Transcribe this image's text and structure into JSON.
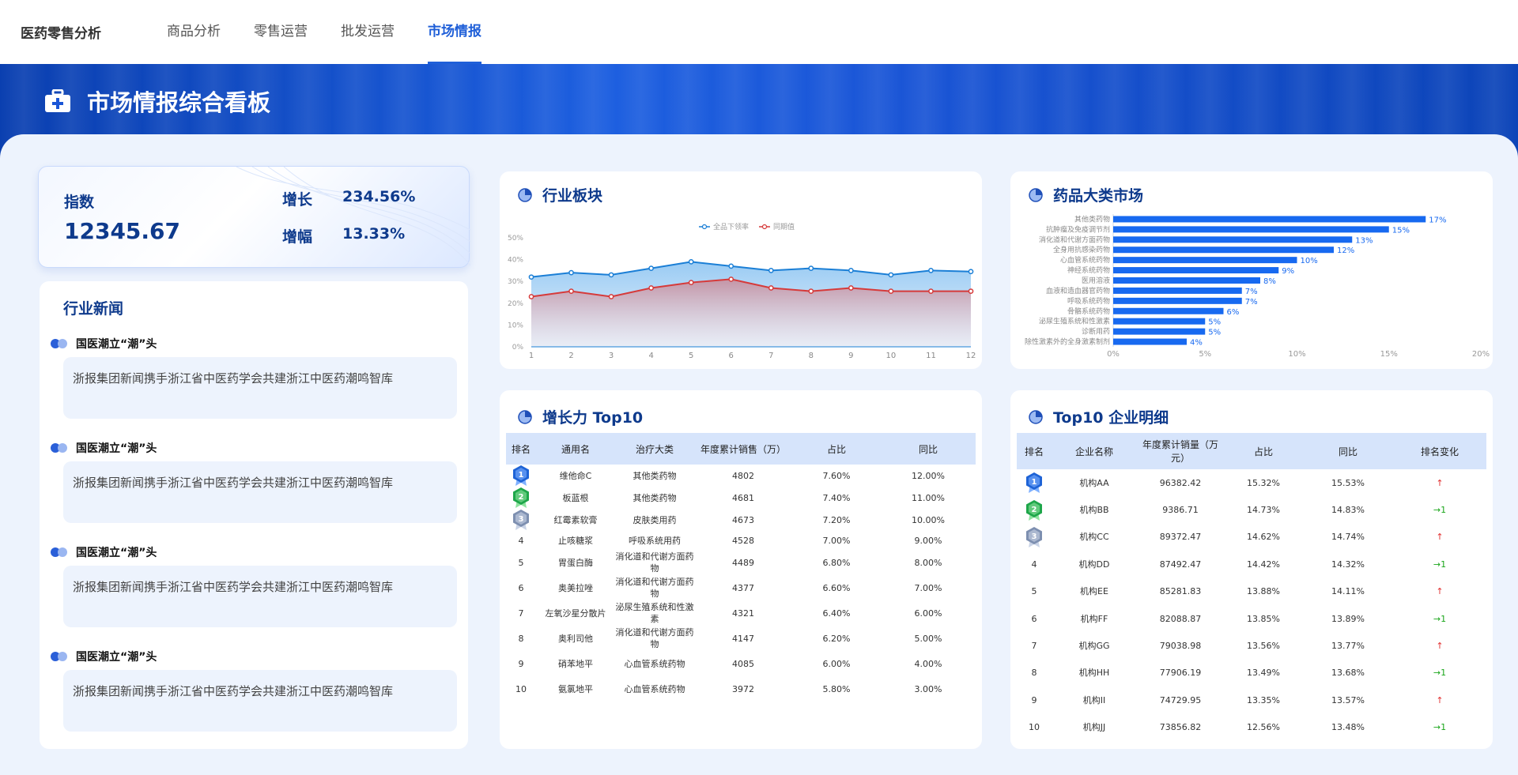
{
  "brand": "医药零售分析",
  "nav": {
    "tabs": [
      {
        "label": "商品分析",
        "active": false
      },
      {
        "label": "零售运营",
        "active": false
      },
      {
        "label": "批发运营",
        "active": false
      },
      {
        "label": "市场情报",
        "active": true
      }
    ]
  },
  "banner": {
    "title": "市场情报综合看板"
  },
  "index": {
    "label": "指数",
    "value": "12345.67",
    "growth_label": "增长",
    "growth_value": "234.56%",
    "rise_label": "增幅",
    "rise_value": "13.33%"
  },
  "news": {
    "title": "行业新闻",
    "items": [
      {
        "headline": "国医潮立“潮”头",
        "body": "浙报集团新闻携手浙江省中医药学会共建浙江中医药潮鸣智库"
      },
      {
        "headline": "国医潮立“潮”头",
        "body": "浙报集团新闻携手浙江省中医药学会共建浙江中医药潮鸣智库"
      },
      {
        "headline": "国医潮立“潮”头",
        "body": "浙报集团新闻携手浙江省中医药学会共建浙江中医药潮鸣智库"
      },
      {
        "headline": "国医潮立“潮”头",
        "body": "浙报集团新闻携手浙江省中医药学会共建浙江中医药潮鸣智库"
      }
    ]
  },
  "sector": {
    "title": "行业板块"
  },
  "market": {
    "title": "药品大类市场"
  },
  "growth": {
    "title": "增长力 Top10",
    "headers": [
      "排名",
      "通用名",
      "治疗大类",
      "年度累计销售（万）",
      "占比",
      "同比"
    ],
    "rows": [
      {
        "rank": "1",
        "name": "维他命C",
        "cat": "其他类药物",
        "sales": "4802",
        "share": "7.60%",
        "yoy": "12.00%"
      },
      {
        "rank": "2",
        "name": "板蓝根",
        "cat": "其他类药物",
        "sales": "4681",
        "share": "7.40%",
        "yoy": "11.00%"
      },
      {
        "rank": "3",
        "name": "红霉素软膏",
        "cat": "皮肤类用药",
        "sales": "4673",
        "share": "7.20%",
        "yoy": "10.00%"
      },
      {
        "rank": "4",
        "name": "止咳糖浆",
        "cat": "呼吸系统用药",
        "sales": "4528",
        "share": "7.00%",
        "yoy": "9.00%"
      },
      {
        "rank": "5",
        "name": "胃蛋白酶",
        "cat": "消化道和代谢方面药物",
        "sales": "4489",
        "share": "6.80%",
        "yoy": "8.00%"
      },
      {
        "rank": "6",
        "name": "奥美拉唑",
        "cat": "消化道和代谢方面药物",
        "sales": "4377",
        "share": "6.60%",
        "yoy": "7.00%"
      },
      {
        "rank": "7",
        "name": "左氧沙星分散片",
        "cat": "泌尿生殖系统和性激素",
        "sales": "4321",
        "share": "6.40%",
        "yoy": "6.00%"
      },
      {
        "rank": "8",
        "name": "奥利司他",
        "cat": "消化道和代谢方面药物",
        "sales": "4147",
        "share": "6.20%",
        "yoy": "5.00%"
      },
      {
        "rank": "9",
        "name": "硝苯地平",
        "cat": "心血管系统药物",
        "sales": "4085",
        "share": "6.00%",
        "yoy": "4.00%"
      },
      {
        "rank": "10",
        "name": "氨氯地平",
        "cat": "心血管系统药物",
        "sales": "3972",
        "share": "5.80%",
        "yoy": "3.00%"
      }
    ]
  },
  "enterprise": {
    "title": "Top10 企业明细",
    "headers": [
      "排名",
      "企业名称",
      "年度累计销量（万元）",
      "占比",
      "同比",
      "排名变化"
    ],
    "rows": [
      {
        "rank": "1",
        "name": "机构AA",
        "sales": "96382.42",
        "share": "15.32%",
        "yoy": "15.53%",
        "change": "↑",
        "dir": "up"
      },
      {
        "rank": "2",
        "name": "机构BB",
        "sales": "9386.71",
        "share": "14.73%",
        "yoy": "14.83%",
        "change": "→1",
        "dir": "down"
      },
      {
        "rank": "3",
        "name": "机构CC",
        "sales": "89372.47",
        "share": "14.62%",
        "yoy": "14.74%",
        "change": "↑",
        "dir": "up"
      },
      {
        "rank": "4",
        "name": "机构DD",
        "sales": "87492.47",
        "share": "14.42%",
        "yoy": "14.32%",
        "change": "→1",
        "dir": "down"
      },
      {
        "rank": "5",
        "name": "机构EE",
        "sales": "85281.83",
        "share": "13.88%",
        "yoy": "14.11%",
        "change": "↑",
        "dir": "up"
      },
      {
        "rank": "6",
        "name": "机构FF",
        "sales": "82088.87",
        "share": "13.85%",
        "yoy": "13.89%",
        "change": "→1",
        "dir": "down"
      },
      {
        "rank": "7",
        "name": "机构GG",
        "sales": "79038.98",
        "share": "13.56%",
        "yoy": "13.77%",
        "change": "↑",
        "dir": "up"
      },
      {
        "rank": "8",
        "name": "机构HH",
        "sales": "77906.19",
        "share": "13.49%",
        "yoy": "13.68%",
        "change": "→1",
        "dir": "down"
      },
      {
        "rank": "9",
        "name": "机构II",
        "sales": "74729.95",
        "share": "13.35%",
        "yoy": "13.57%",
        "change": "↑",
        "dir": "up"
      },
      {
        "rank": "10",
        "name": "机构JJ",
        "sales": "73856.82",
        "share": "12.56%",
        "yoy": "13.48%",
        "change": "→1",
        "dir": "down"
      }
    ]
  },
  "colors": {
    "accent": "#1f5fd8",
    "line_blue": "#1b7fd6",
    "line_red": "#d63a3a",
    "bar": "#1769f0",
    "up": "#e23232",
    "down": "#1aa61a"
  },
  "chart_data": [
    {
      "type": "area",
      "title": "行业板块",
      "x": [
        "1",
        "2",
        "3",
        "4",
        "5",
        "6",
        "7",
        "8",
        "9",
        "10",
        "11",
        "12"
      ],
      "ylim": [
        0,
        50
      ],
      "yticks": [
        "0%",
        "10%",
        "20%",
        "30%",
        "40%",
        "50%"
      ],
      "legend_position": "top-center",
      "series": [
        {
          "name": "全品下领率",
          "color": "#1b7fd6",
          "values": [
            32,
            34,
            33,
            36,
            39,
            37,
            35,
            36,
            35,
            33,
            35,
            34.5
          ]
        },
        {
          "name": "同期值",
          "color": "#d63a3a",
          "values": [
            23,
            25.5,
            23,
            27,
            29.5,
            31,
            27,
            25.5,
            27,
            25.5,
            25.5,
            25.5
          ]
        }
      ]
    },
    {
      "type": "bar",
      "orientation": "horizontal",
      "title": "药品大类市场",
      "xlim": [
        0,
        20
      ],
      "xticks": [
        "0%",
        "5%",
        "10%",
        "15%",
        "20%"
      ],
      "categories": [
        "其他类药物",
        "抗肿瘤及免疫调节剂",
        "消化道和代谢方面药物",
        "全身用抗感染药物",
        "心血管系统药物",
        "神经系统药物",
        "医用溶液",
        "血液和造血器官药物",
        "呼吸系统药物",
        "骨骼系统药物",
        "泌尿生殖系统和性激素",
        "诊断用药",
        "除性激素外的全身激素制剂"
      ],
      "values": [
        17,
        15,
        13,
        12,
        10,
        9,
        8,
        7,
        7,
        6,
        5,
        5,
        4
      ],
      "labels": [
        "17%",
        "15%",
        "13%",
        "12%",
        "10%",
        "9%",
        "8%",
        "7%",
        "7%",
        "6%",
        "5%",
        "5%",
        "4%"
      ]
    }
  ]
}
